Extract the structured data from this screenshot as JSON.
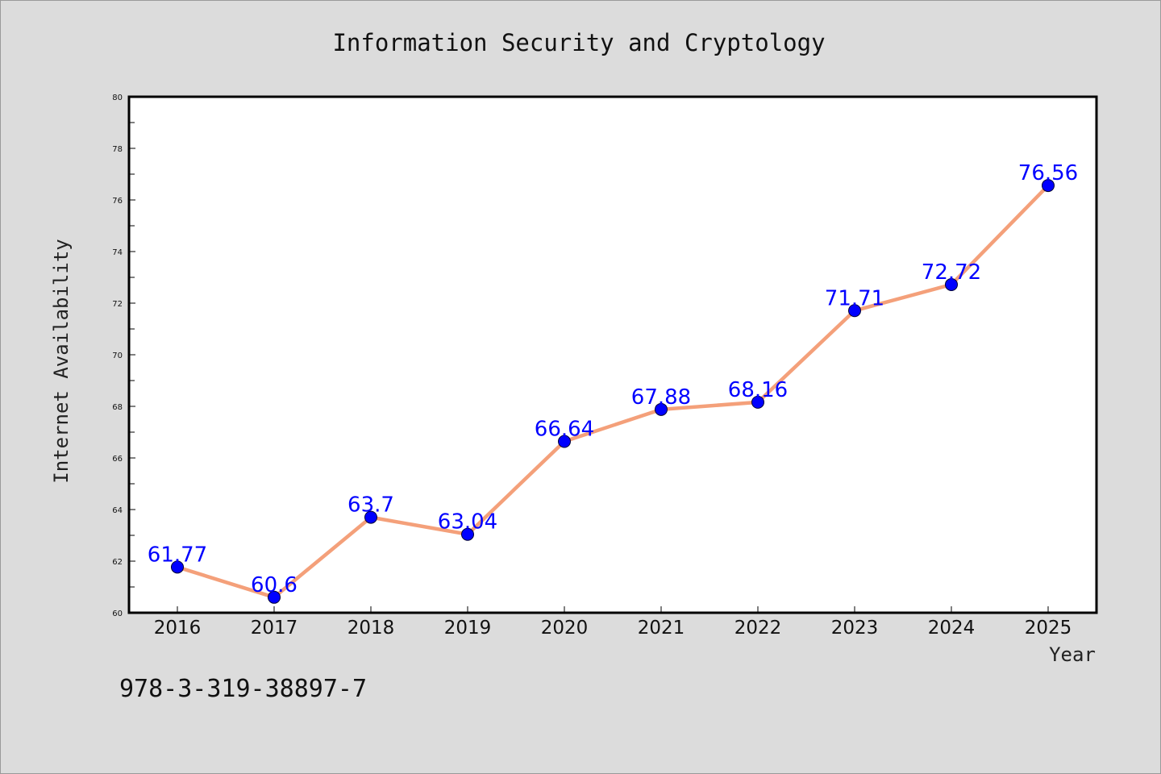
{
  "footer": {
    "isbn": "978-3-319-38897-7"
  },
  "colors": {
    "background": "#dcdcdc",
    "plot_background": "#ffffff",
    "line": "#f4a07a",
    "marker": "#0000ff",
    "data_label": "#0000ff"
  },
  "chart_data": {
    "type": "line",
    "title": "Information Security and Cryptology",
    "xlabel": "Year",
    "ylabel": "Internet Availability",
    "categories": [
      "2016",
      "2017",
      "2018",
      "2019",
      "2020",
      "2021",
      "2022",
      "2023",
      "2024",
      "2025"
    ],
    "series": [
      {
        "values": [
          61.77,
          60.6,
          63.7,
          63.04,
          66.64,
          67.88,
          68.16,
          71.71,
          72.72,
          76.56
        ],
        "labels": [
          "61.77",
          "60.6",
          "63.7",
          "63.04",
          "66.64",
          "67.88",
          "68.16",
          "71.71",
          "72.72",
          "76.56"
        ]
      }
    ],
    "ylim": [
      60,
      80
    ],
    "yticks": [
      "60",
      "62",
      "64",
      "66",
      "68",
      "70",
      "72",
      "74",
      "76",
      "78",
      "80"
    ],
    "marker": "circle",
    "grid": false,
    "legend": "none"
  }
}
